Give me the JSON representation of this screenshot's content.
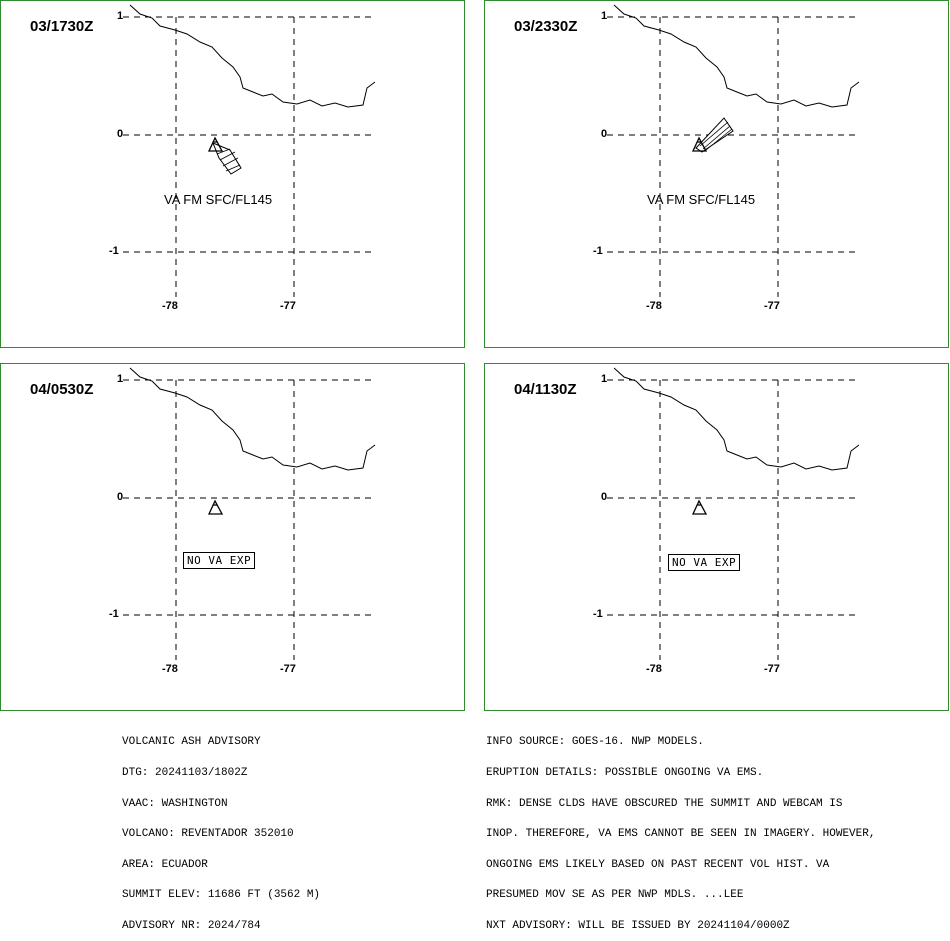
{
  "colors": {
    "border": "#2e8b2e",
    "lines": "#000000"
  },
  "panels": [
    {
      "title": "03/1730Z",
      "lat_ticks": [
        "1",
        "0",
        "-1"
      ],
      "lon_ticks": [
        "-78",
        "-77"
      ],
      "ash_label": "VA FM SFC/FL145",
      "icon": "volcano-triangle-icon"
    },
    {
      "title": "03/2330Z",
      "lat_ticks": [
        "1",
        "0",
        "-1"
      ],
      "lon_ticks": [
        "-78",
        "-77"
      ],
      "ash_label": "VA FM SFC/FL145",
      "icon": "volcano-triangle-icon"
    },
    {
      "title": "04/0530Z",
      "lat_ticks": [
        "1",
        "0",
        "-1"
      ],
      "lon_ticks": [
        "-78",
        "-77"
      ],
      "box_label": "NO VA EXP",
      "icon": "volcano-triangle-icon"
    },
    {
      "title": "04/1130Z",
      "lat_ticks": [
        "1",
        "0",
        "-1"
      ],
      "lon_ticks": [
        "-78",
        "-77"
      ],
      "box_label": "NO VA EXP",
      "icon": "volcano-triangle-icon"
    }
  ],
  "advisory_left": [
    "VOLCANIC ASH ADVISORY",
    "DTG: 20241103/1802Z",
    "VAAC: WASHINGTON",
    "VOLCANO: REVENTADOR 352010",
    "AREA: ECUADOR",
    "SUMMIT ELEV: 11686 FT (3562 M)",
    "ADVISORY NR: 2024/784"
  ],
  "advisory_right": [
    "INFO SOURCE: GOES-16. NWP MODELS.",
    "ERUPTION DETAILS: POSSIBLE ONGOING VA EMS.",
    "RMK: DENSE CLDS HAVE OBSCURED THE SUMMIT AND WEBCAM IS",
    "INOP. THEREFORE, VA EMS CANNOT BE SEEN IN IMAGERY. HOWEVER,",
    "ONGOING EMS LIKELY BASED ON PAST RECENT VOL HIST. VA",
    "PRESUMED MOV SE AS PER NWP MDLS. ...LEE",
    "NXT ADVISORY: WILL BE ISSUED BY 20241104/0000Z"
  ]
}
